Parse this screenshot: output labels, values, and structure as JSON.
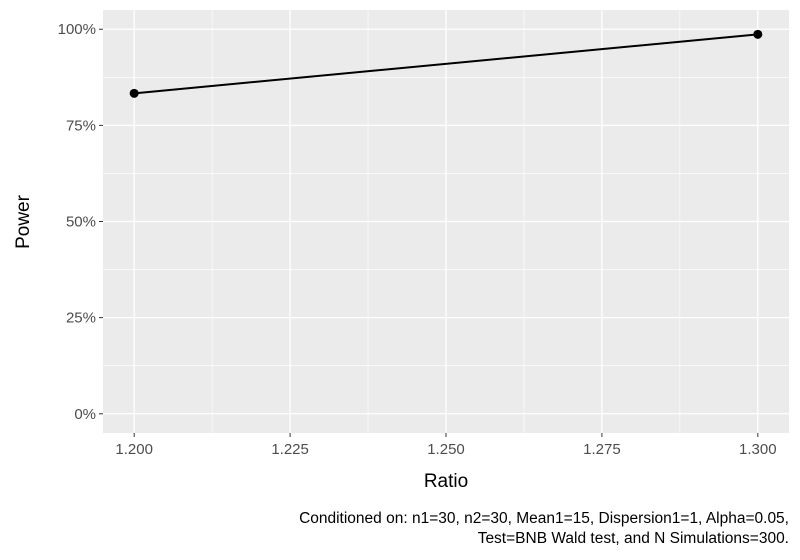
{
  "chart_data": {
    "type": "line",
    "x": [
      1.2,
      1.3
    ],
    "series": [
      {
        "values": [
          0.8333,
          0.9867
        ]
      }
    ],
    "xlabel": "Ratio",
    "ylabel": "Power",
    "xlim": [
      1.195,
      1.305
    ],
    "ylim": [
      -0.05,
      1.05
    ],
    "x_ticks": [
      1.2,
      1.225,
      1.25,
      1.275,
      1.3
    ],
    "x_tick_labels": [
      "1.200",
      "1.225",
      "1.250",
      "1.275",
      "1.300"
    ],
    "y_ticks": [
      0,
      0.25,
      0.5,
      0.75,
      1
    ],
    "y_tick_labels": [
      "0%",
      "25%",
      "50%",
      "75%",
      "100%"
    ],
    "grid": true,
    "panel_background": "#ebebeb",
    "line_color": "#000000",
    "caption": [
      "Conditioned on: n1=30, n2=30, Mean1=15, Dispersion1=1, Alpha=0.05,",
      "Test=BNB Wald test, and N Simulations=300."
    ]
  }
}
